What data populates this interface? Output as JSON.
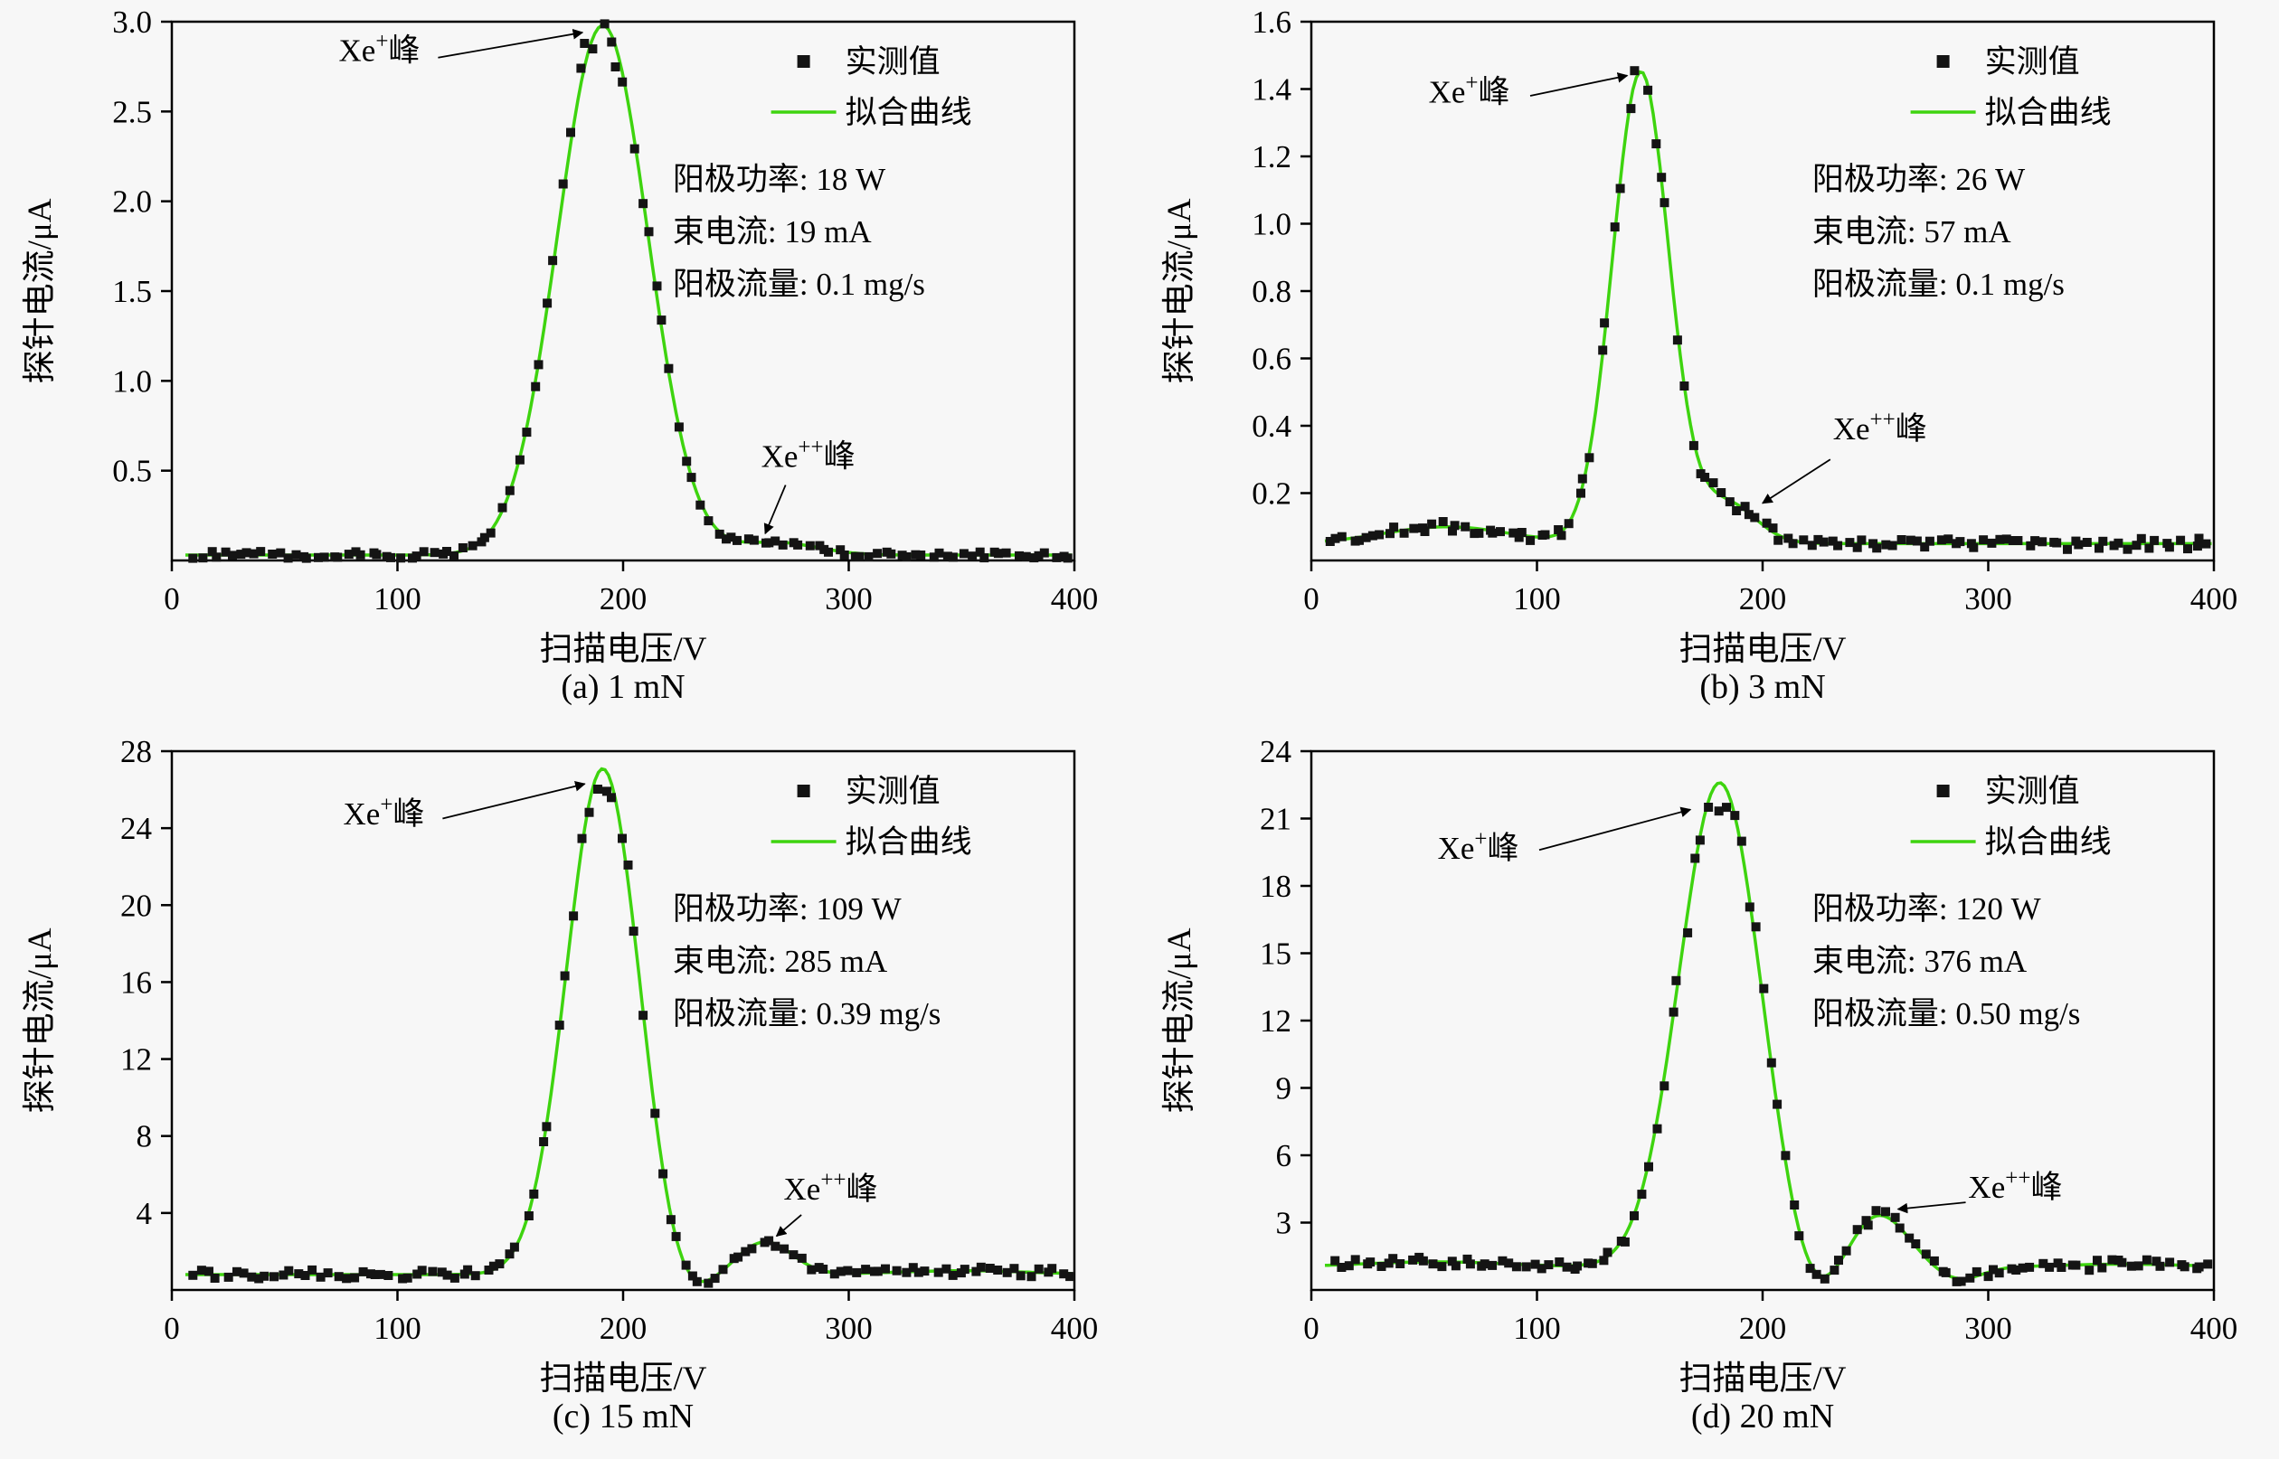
{
  "figure": {
    "background": "#f7f7f7",
    "caption_a": "(a) 1 mN",
    "caption_b": "(b) 3 mN",
    "caption_c": "(c) 15 mN",
    "caption_d": "(d) 20 mN"
  },
  "style": {
    "fit_color": "#3ed40f",
    "marker_color": "#141414",
    "axis_color": "#000000"
  },
  "chart_data": [
    {
      "type": "line",
      "caption": "(a) 1 mN",
      "xlabel": "扫描电压/V",
      "ylabel": "探针电流/μA",
      "xlim": [
        0,
        400
      ],
      "ylim": [
        0,
        3.0
      ],
      "grid": false,
      "legend_position": "top-right",
      "xticks": [
        0,
        100,
        200,
        300,
        400
      ],
      "xtick_labels": [
        "0",
        "100",
        "200",
        "300",
        "400"
      ],
      "yticks": [
        0.5,
        1.0,
        1.5,
        2.0,
        2.5,
        3.0
      ],
      "ytick_labels": [
        "0.5",
        "1.0",
        "1.5",
        "2.0",
        "2.5",
        "3.0"
      ],
      "legend": [
        "实测值",
        "拟合曲线"
      ],
      "info_lines": [
        "阳极功率: 18 W",
        "束电流: 19 mA",
        "阳极流量: 0.1 mg/s"
      ],
      "fit": {
        "baseline": 0.03,
        "peaks": [
          [
            191,
            2.95,
            20
          ],
          [
            268,
            0.07,
            18
          ]
        ]
      },
      "measured": {
        "x_start": 10,
        "x_end": 398,
        "n": 115,
        "rel_noise": 0.05,
        "abs_noise": 0.02,
        "seed": 11,
        "cap": null
      },
      "annotations": [
        {
          "parts": [
            {
              "t": "Xe"
            },
            {
              "t": "+",
              "sup": true
            },
            {
              "t": "峰"
            }
          ],
          "x": 110,
          "y": 2.78,
          "anchor": "end",
          "arrow": [
            118,
            2.8,
            182,
            2.94
          ]
        },
        {
          "parts": [
            {
              "t": "Xe"
            },
            {
              "t": "++",
              "sup": true
            },
            {
              "t": "峰"
            }
          ],
          "x": 282,
          "y": 0.52,
          "anchor": "middle",
          "arrow": [
            272,
            0.42,
            263,
            0.15
          ]
        }
      ]
    },
    {
      "type": "line",
      "caption": "(b) 3 mN",
      "xlabel": "扫描电压/V",
      "ylabel": "探针电流/μA",
      "xlim": [
        0,
        400
      ],
      "ylim": [
        0,
        1.6
      ],
      "grid": false,
      "legend_position": "top-right",
      "xticks": [
        0,
        100,
        200,
        300,
        400
      ],
      "xtick_labels": [
        "0",
        "100",
        "200",
        "300",
        "400"
      ],
      "yticks": [
        0.2,
        0.4,
        0.6,
        0.8,
        1.0,
        1.2,
        1.4,
        1.6
      ],
      "ytick_labels": [
        "0.2",
        "0.4",
        "0.6",
        "0.8",
        "1.0",
        "1.2",
        "1.4",
        "1.6"
      ],
      "legend": [
        "实测值",
        "拟合曲线"
      ],
      "info_lines": [
        "阳极功率: 26 W",
        "束电流: 57 mA",
        "阳极流量: 0.1 mg/s"
      ],
      "fit": {
        "baseline": 0.05,
        "peaks": [
          [
            60,
            0.05,
            28
          ],
          [
            146,
            1.4,
            12.5
          ],
          [
            184,
            0.12,
            13
          ]
        ]
      },
      "measured": {
        "x_start": 8,
        "x_end": 398,
        "n": 118,
        "rel_noise": 0.05,
        "abs_noise": 0.016,
        "seed": 22,
        "cap": null
      },
      "annotations": [
        {
          "parts": [
            {
              "t": "Xe"
            },
            {
              "t": "+",
              "sup": true
            },
            {
              "t": "峰"
            }
          ],
          "x": 88,
          "y": 1.36,
          "anchor": "end",
          "arrow": [
            97,
            1.38,
            140,
            1.44
          ]
        },
        {
          "parts": [
            {
              "t": "Xe"
            },
            {
              "t": "++",
              "sup": true
            },
            {
              "t": "峰"
            }
          ],
          "x": 252,
          "y": 0.36,
          "anchor": "middle",
          "arrow": [
            230,
            0.3,
            200,
            0.17
          ]
        }
      ]
    },
    {
      "type": "line",
      "caption": "(c) 15 mN",
      "xlabel": "扫描电压/V",
      "ylabel": "探针电流/μA",
      "xlim": [
        0,
        400
      ],
      "ylim": [
        0,
        28
      ],
      "grid": false,
      "legend_position": "top-right",
      "xticks": [
        0,
        100,
        200,
        300,
        400
      ],
      "xtick_labels": [
        "0",
        "100",
        "200",
        "300",
        "400"
      ],
      "yticks": [
        4,
        8,
        12,
        16,
        20,
        24,
        28
      ],
      "ytick_labels": [
        "4",
        "8",
        "12",
        "16",
        "20",
        "24",
        "28"
      ],
      "legend": [
        "实测值",
        "拟合曲线"
      ],
      "info_lines": [
        "阳极功率: 109 W",
        "束电流: 285 mA",
        "阳极流量: 0.39 mg/s"
      ],
      "fit": {
        "baseline": 0.8,
        "peaks": [
          [
            191,
            26.3,
            16
          ],
          [
            226,
            -1.5,
            11
          ],
          [
            263,
            1.7,
            12
          ],
          [
            350,
            0.2,
            30
          ]
        ]
      },
      "measured": {
        "x_start": 10,
        "x_end": 398,
        "n": 112,
        "rel_noise": 0.05,
        "abs_noise": 0.22,
        "seed": 33,
        "cap": null
      },
      "annotations": [
        {
          "parts": [
            {
              "t": "Xe"
            },
            {
              "t": "+",
              "sup": true
            },
            {
              "t": "峰"
            }
          ],
          "x": 112,
          "y": 24.2,
          "anchor": "end",
          "arrow": [
            120,
            24.5,
            183,
            26.3
          ]
        },
        {
          "parts": [
            {
              "t": "Xe"
            },
            {
              "t": "++",
              "sup": true
            },
            {
              "t": "峰"
            }
          ],
          "x": 292,
          "y": 4.7,
          "anchor": "middle",
          "arrow": [
            279,
            3.9,
            268,
            2.8
          ]
        }
      ]
    },
    {
      "type": "line",
      "caption": "(d) 20 mN",
      "xlabel": "扫描电压/V",
      "ylabel": "探针电流/μA",
      "xlim": [
        0,
        400
      ],
      "ylim": [
        0,
        24
      ],
      "grid": false,
      "legend_position": "top-right",
      "xticks": [
        0,
        100,
        200,
        300,
        400
      ],
      "xtick_labels": [
        "0",
        "100",
        "200",
        "300",
        "400"
      ],
      "yticks": [
        3,
        6,
        9,
        12,
        15,
        18,
        21,
        24
      ],
      "ytick_labels": [
        "3",
        "6",
        "9",
        "12",
        "15",
        "18",
        "21",
        "24"
      ],
      "legend": [
        "实测值",
        "拟合曲线"
      ],
      "info_lines": [
        "阳极功率: 120 W",
        "束电流: 376 mA",
        "阳极流量: 0.50 mg/s"
      ],
      "fit": {
        "baseline": 1.0,
        "peaks": [
          [
            55,
            0.25,
            35
          ],
          [
            181,
            21.6,
            18
          ],
          [
            222,
            -1.8,
            12
          ],
          [
            251,
            2.4,
            13
          ],
          [
            287,
            -0.55,
            10
          ],
          [
            360,
            0.15,
            30
          ]
        ]
      },
      "measured": {
        "x_start": 10,
        "x_end": 398,
        "n": 115,
        "rel_noise": 0.05,
        "abs_noise": 0.22,
        "seed": 44,
        "cap": 21.3
      },
      "annotations": [
        {
          "parts": [
            {
              "t": "Xe"
            },
            {
              "t": "+",
              "sup": true
            },
            {
              "t": "峰"
            }
          ],
          "x": 92,
          "y": 19.2,
          "anchor": "end",
          "arrow": [
            101,
            19.6,
            168,
            21.4
          ]
        },
        {
          "parts": [
            {
              "t": "Xe"
            },
            {
              "t": "++",
              "sup": true
            },
            {
              "t": "峰"
            }
          ],
          "x": 312,
          "y": 4.1,
          "anchor": "middle",
          "arrow": [
            290,
            3.9,
            260,
            3.6
          ]
        }
      ]
    }
  ]
}
